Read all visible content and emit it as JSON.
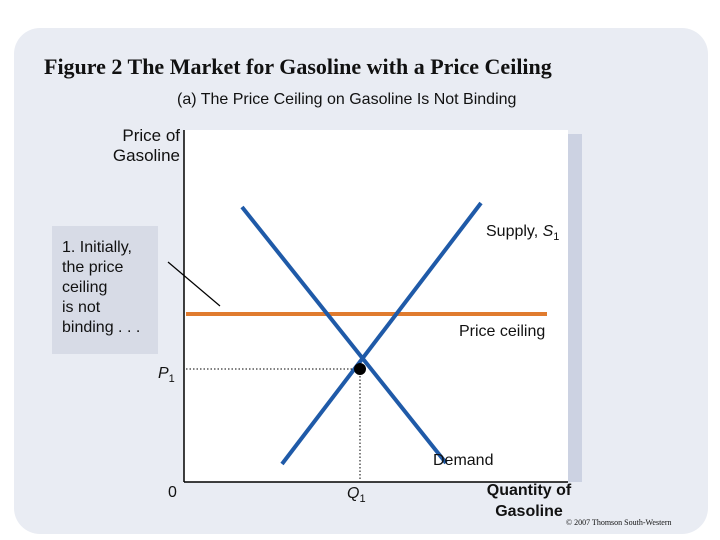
{
  "figure_title": "Figure 2 The Market for Gasoline with a Price Ceiling",
  "panel_title": "(a) The Price Ceiling on Gasoline Is Not Binding",
  "annotation": "1. Initially,\nthe price\nceiling\nis not\nbinding . . .",
  "copyright": "© 2007 Thomson South-Western",
  "colors": {
    "curve": "#1f5aa8",
    "ceiling": "#e07b2e",
    "axis": "#000000",
    "panel": "#e9ecf3"
  },
  "chart_data": {
    "type": "line",
    "title": "(a) The Price Ceiling on Gasoline Is Not Binding",
    "ylabel": "Price of\nGasoline",
    "xlabel": "Quantity of\nGasoline",
    "origin_label": "0",
    "equilibrium": {
      "price_label": "P",
      "price_sub": "1",
      "quantity_label": "Q",
      "quantity_sub": "1"
    },
    "curves": [
      {
        "name": "Supply",
        "label": "Supply, ",
        "label_italic": "S",
        "label_sub": "1",
        "kind": "supply"
      },
      {
        "name": "Demand",
        "label": "Demand",
        "kind": "demand"
      }
    ],
    "price_ceiling": {
      "label": "Price ceiling"
    }
  }
}
